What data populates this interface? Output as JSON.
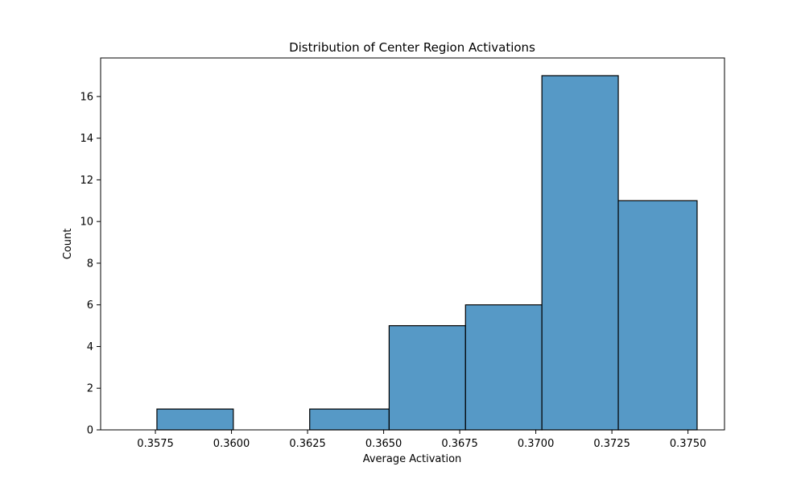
{
  "chart_data": {
    "type": "bar",
    "title": "Distribution of Center Region Activations",
    "xlabel": "Average Activation",
    "ylabel": "Count",
    "bins": [
      {
        "x0": 0.35755,
        "x1": 0.36006,
        "count": 1
      },
      {
        "x0": 0.36006,
        "x1": 0.36257,
        "count": 0
      },
      {
        "x0": 0.36257,
        "x1": 0.36518,
        "count": 1
      },
      {
        "x0": 0.36518,
        "x1": 0.36769,
        "count": 5
      },
      {
        "x0": 0.36769,
        "x1": 0.3702,
        "count": 6
      },
      {
        "x0": 0.3702,
        "x1": 0.37271,
        "count": 17
      },
      {
        "x0": 0.37271,
        "x1": 0.3753,
        "count": 11
      }
    ],
    "xlim": [
      0.3557,
      0.3762
    ],
    "ylim": [
      0,
      17.85
    ],
    "x_ticks": [
      {
        "value": 0.3575,
        "label": "0.3575"
      },
      {
        "value": 0.36,
        "label": "0.3600"
      },
      {
        "value": 0.3625,
        "label": "0.3625"
      },
      {
        "value": 0.365,
        "label": "0.3650"
      },
      {
        "value": 0.3675,
        "label": "0.3675"
      },
      {
        "value": 0.37,
        "label": "0.3700"
      },
      {
        "value": 0.3725,
        "label": "0.3725"
      },
      {
        "value": 0.375,
        "label": "0.3750"
      }
    ],
    "y_ticks": [
      {
        "value": 0,
        "label": "0"
      },
      {
        "value": 2,
        "label": "2"
      },
      {
        "value": 4,
        "label": "4"
      },
      {
        "value": 6,
        "label": "6"
      },
      {
        "value": 8,
        "label": "8"
      },
      {
        "value": 10,
        "label": "10"
      },
      {
        "value": 12,
        "label": "12"
      },
      {
        "value": 14,
        "label": "14"
      },
      {
        "value": 16,
        "label": "16"
      }
    ],
    "grid": false,
    "legend": "none",
    "bar_color": "#5699c6",
    "edge_color": "#000000"
  }
}
